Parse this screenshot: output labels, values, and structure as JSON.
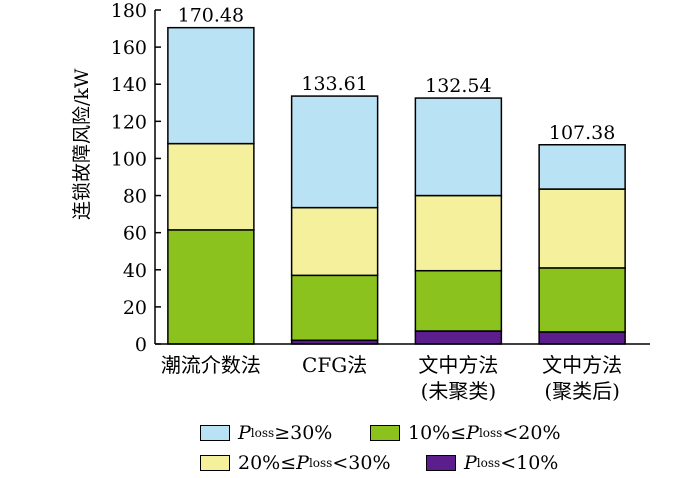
{
  "chart_data": {
    "type": "bar",
    "stacked": true,
    "categories": [
      "潮流介数法",
      "CFG法",
      "文中方法\n(未聚类)",
      "文中方法\n(聚类后)"
    ],
    "series": [
      {
        "name": "Ploss<10%",
        "color": "#5b1e8c",
        "values": [
          0,
          2,
          7,
          6.5
        ]
      },
      {
        "name": "10%≤Ploss<20%",
        "color": "#8cc21e",
        "values": [
          61.5,
          35,
          32.5,
          34.5
        ]
      },
      {
        "name": "20%≤Ploss<30%",
        "color": "#f5f09b",
        "values": [
          46.5,
          36.5,
          40.5,
          42.5
        ]
      },
      {
        "name": "Ploss≥30%",
        "color": "#b9e2f5",
        "values": [
          62.48,
          60.11,
          52.54,
          23.88
        ]
      }
    ],
    "totals": [
      "170.48",
      "133.61",
      "132.54",
      "107.38"
    ],
    "ylabel": "连锁故障风险/kW",
    "ylim": [
      0,
      180
    ],
    "yticks": [
      0,
      20,
      40,
      60,
      80,
      100,
      120,
      140,
      160,
      180
    ],
    "legend": {
      "placement": "bottom",
      "items": [
        {
          "prefix": "",
          "p": "P",
          "sub": "loss",
          "suffix": "≥30%",
          "color": "#b9e2f5"
        },
        {
          "prefix": "10%≤",
          "p": "P",
          "sub": "loss",
          "suffix": "<20%",
          "color": "#8cc21e"
        },
        {
          "prefix": "20%≤",
          "p": "P",
          "sub": "loss",
          "suffix": "<30%",
          "color": "#f5f09b"
        },
        {
          "prefix": "",
          "p": "P",
          "sub": "loss",
          "suffix": "<10%",
          "color": "#5b1e8c"
        }
      ]
    }
  }
}
